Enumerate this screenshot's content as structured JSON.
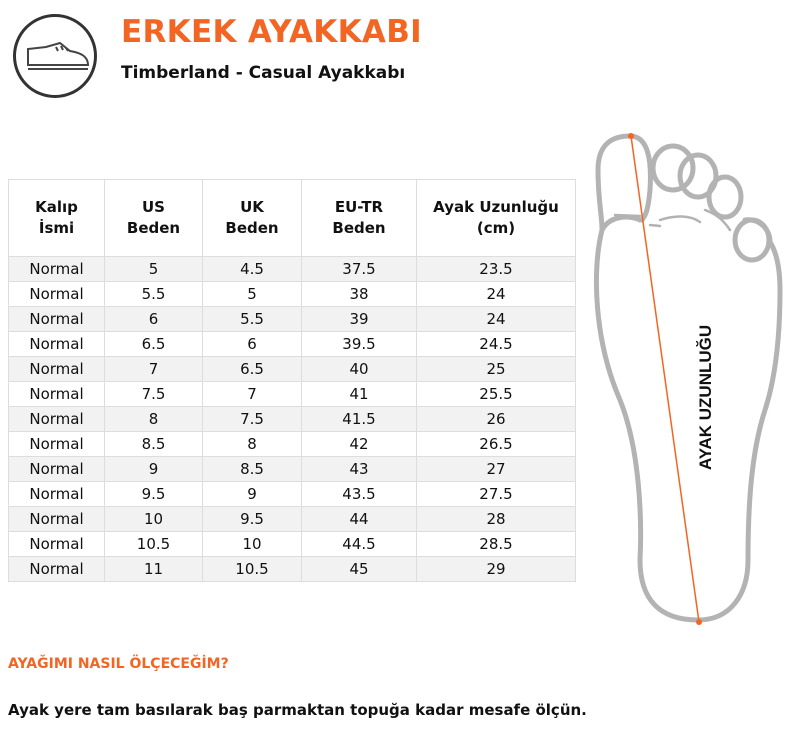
{
  "header": {
    "title": "ERKEK AYAKKABI",
    "subtitle": "Timberland - Casual Ayakkabı",
    "icon": "shoe-icon"
  },
  "table": {
    "columns": [
      [
        "Kalıp",
        "İsmi"
      ],
      [
        "US",
        "Beden"
      ],
      [
        "UK",
        "Beden"
      ],
      [
        "EU-TR",
        "Beden"
      ],
      [
        "Ayak Uzunluğu",
        "(cm)"
      ]
    ],
    "rows": [
      [
        "Normal",
        "5",
        "4.5",
        "37.5",
        "23.5"
      ],
      [
        "Normal",
        "5.5",
        "5",
        "38",
        "24"
      ],
      [
        "Normal",
        "6",
        "5.5",
        "39",
        "24"
      ],
      [
        "Normal",
        "6.5",
        "6",
        "39.5",
        "24.5"
      ],
      [
        "Normal",
        "7",
        "6.5",
        "40",
        "25"
      ],
      [
        "Normal",
        "7.5",
        "7",
        "41",
        "25.5"
      ],
      [
        "Normal",
        "8",
        "7.5",
        "41.5",
        "26"
      ],
      [
        "Normal",
        "8.5",
        "8",
        "42",
        "26.5"
      ],
      [
        "Normal",
        "9",
        "8.5",
        "43",
        "27"
      ],
      [
        "Normal",
        "9.5",
        "9",
        "43.5",
        "27.5"
      ],
      [
        "Normal",
        "10",
        "9.5",
        "44",
        "28"
      ],
      [
        "Normal",
        "10.5",
        "10",
        "44.5",
        "28.5"
      ],
      [
        "Normal",
        "11",
        "10.5",
        "45",
        "29"
      ]
    ]
  },
  "diagram": {
    "label": "AYAK UZUNLUĞU",
    "accent": "#f26522",
    "outline": "#b3b3b3"
  },
  "help": {
    "question": "AYAĞIMI NASIL ÖLÇECEĞİM?",
    "answer": "Ayak yere tam basılarak baş parmaktan topuğa kadar mesafe ölçün."
  }
}
